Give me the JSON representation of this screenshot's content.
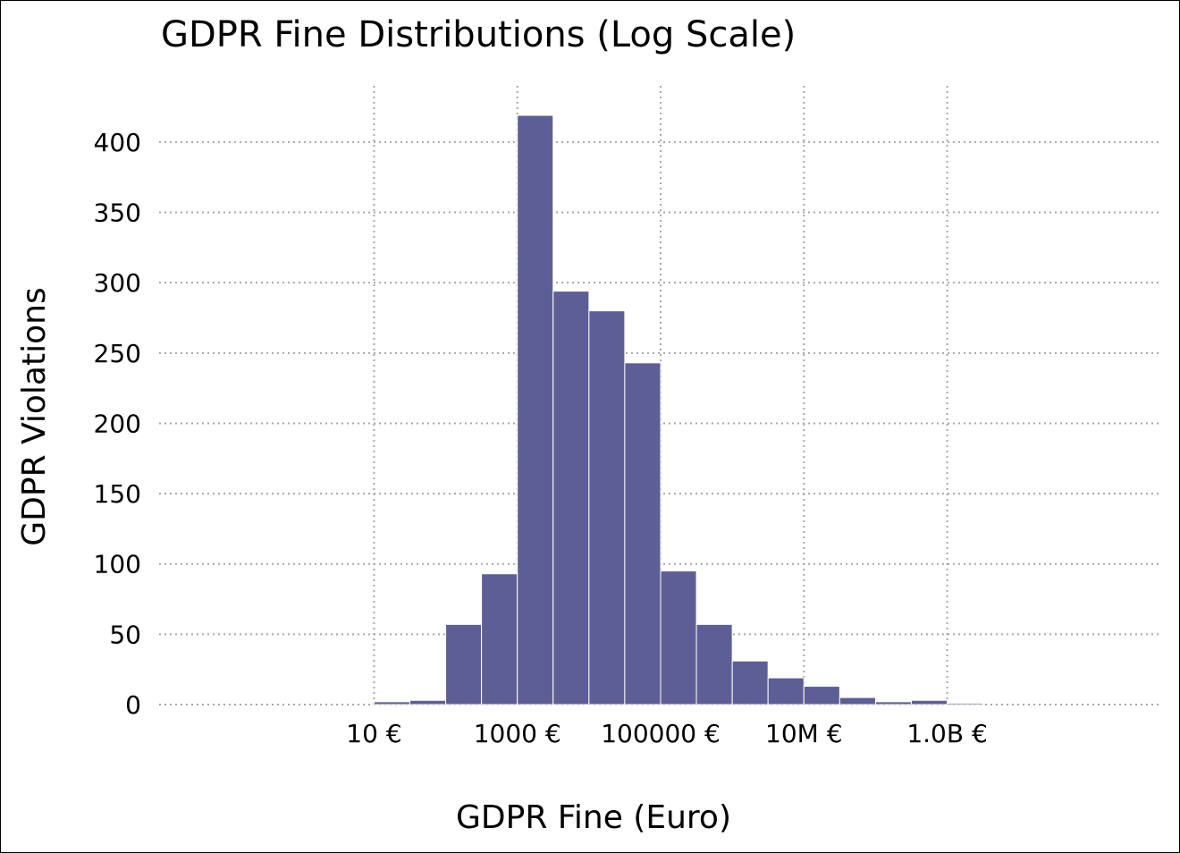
{
  "chart_data": {
    "type": "bar",
    "title": "GDPR Fine Distributions (Log Scale)",
    "xlabel": "GDPR Fine (Euro)",
    "ylabel": "GDPR Violations",
    "x_scale": "log",
    "xlim": [
      0.01,
      1000000000000
    ],
    "ylim": [
      0,
      440
    ],
    "grid": true,
    "bar_color": "#5e5e97",
    "bar_edge_color": "#ffffff",
    "x_ticks": [
      {
        "value": 10,
        "label": "10 €"
      },
      {
        "value": 1000,
        "label": "1000 €"
      },
      {
        "value": 100000,
        "label": "100000 €"
      },
      {
        "value": 10000000,
        "label": "10M €"
      },
      {
        "value": 1000000000,
        "label": "1.0B €"
      }
    ],
    "y_ticks": [
      {
        "value": 0,
        "label": "0"
      },
      {
        "value": 50,
        "label": "50"
      },
      {
        "value": 100,
        "label": "100"
      },
      {
        "value": 150,
        "label": "150"
      },
      {
        "value": 200,
        "label": "200"
      },
      {
        "value": 250,
        "label": "250"
      },
      {
        "value": 300,
        "label": "300"
      },
      {
        "value": 350,
        "label": "350"
      },
      {
        "value": 400,
        "label": "400"
      }
    ],
    "bins": [
      {
        "from": 10,
        "to": 31.6,
        "count": 2
      },
      {
        "from": 31.6,
        "to": 100,
        "count": 3
      },
      {
        "from": 100,
        "to": 316,
        "count": 57
      },
      {
        "from": 316,
        "to": 1000,
        "count": 93
      },
      {
        "from": 1000,
        "to": 3160,
        "count": 419
      },
      {
        "from": 3160,
        "to": 10000,
        "count": 294
      },
      {
        "from": 10000,
        "to": 31600,
        "count": 280
      },
      {
        "from": 31600,
        "to": 100000,
        "count": 243
      },
      {
        "from": 100000,
        "to": 316000,
        "count": 95
      },
      {
        "from": 316000,
        "to": 1000000,
        "count": 57
      },
      {
        "from": 1000000,
        "to": 3160000,
        "count": 31
      },
      {
        "from": 3160000,
        "to": 10000000,
        "count": 19
      },
      {
        "from": 10000000,
        "to": 31600000,
        "count": 13
      },
      {
        "from": 31600000,
        "to": 100000000,
        "count": 5
      },
      {
        "from": 100000000,
        "to": 316000000,
        "count": 2
      },
      {
        "from": 316000000,
        "to": 1000000000,
        "count": 3
      },
      {
        "from": 1000000000,
        "to": 3160000000,
        "count": 1
      }
    ]
  }
}
